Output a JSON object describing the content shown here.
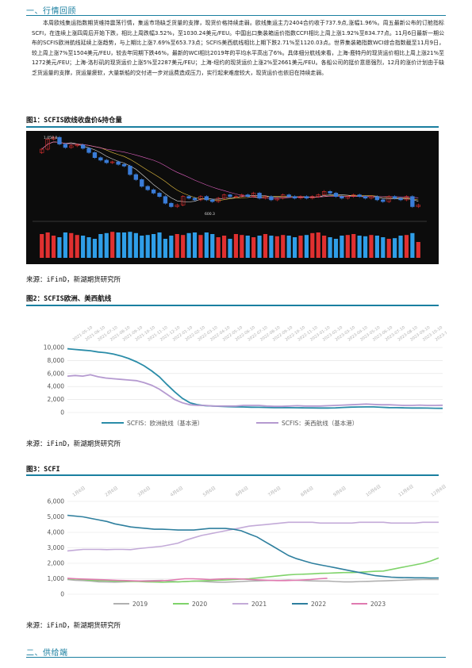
{
  "section1_title": "一、行情回顾",
  "section2_title": "二、供给端",
  "paragraph": "本周欧线集运指数期货维持震荡行情，集运市场缺乏货量的支撑，现货价格持续走弱。欧线集运主力2404合约收于737.9点,涨幅1.96%。周五最新公布的订舱指标SCFI，在连续上涨四周后开始下跌，相比上周跌幅3.52%，至1030.24美元/FEU。中国出口集装箱运价指数CCFI相比上周上涨1.92%至834.77点。11月6日最新一期公布的SCFIS欧洲航线延续上涨趋势，与上期比上涨7.69%至653.73点；SCFIS美西航线相比上期下跌2.71%至1120.03点。世界集装箱指数WCI综合指数截至11月9日，较上周上涨7%至1504美元/FEU，较去年同期下跌46%，最新的WCI相比2019年的平均水平高出了6%。具体细分航线来看，上海-鹿特丹的现货运价相比上周上涨21%至1272美元/FEU；上海-洛杉矶的现货运价上涨5%至2287美元/FEU；上海-纽约的现货运价上涨2%至2661美元/FEU。各船公司的挺价意愿强烈，12月的涨价计划由于缺乏货运量的支撑，货运量疲软，大量新船的交付进一步对运费造成压力，实行起来难度较大，现货运价也依旧在持续走弱。",
  "figures": {
    "fig1": {
      "title": "图1：SCFIS欧线收盘价&持仓量",
      "source": "来源：iFinD，新湖期货研究所"
    },
    "fig2": {
      "title": "图2：SCFIS欧洲、美西航线",
      "source": "来源：iFinD，新湖期货研究所"
    },
    "fig3": {
      "title": "图3：SCFI",
      "source": "来源：iFinD，新湖期货研究所"
    }
  },
  "colors": {
    "accent": "#1a7fa0",
    "candle_up": "#e03030",
    "candle_down": "#3a7cd8"
  },
  "chart_data": [
    {
      "type": "candlestick",
      "title": "",
      "price_labels": {
        "high": "1,059.8",
        "low": "600.3"
      },
      "close_approx": [
        980,
        1040,
        1050,
        1010,
        990,
        1000,
        1005,
        985,
        960,
        930,
        915,
        900,
        905,
        890,
        880,
        830,
        800,
        760,
        740,
        720,
        700,
        660,
        640,
        650,
        700,
        690,
        680,
        700,
        680,
        670,
        690,
        710,
        700,
        700,
        710,
        700,
        720,
        690,
        700,
        680,
        690,
        710,
        700,
        690,
        700,
        690,
        700,
        710,
        730,
        720,
        700,
        690,
        700,
        710,
        700,
        690,
        700,
        680,
        670,
        700,
        690,
        680,
        700,
        640,
        650
      ],
      "volume_approx": [
        0.75,
        0.8,
        0.7,
        0.65,
        0.8,
        0.78,
        0.72,
        0.7,
        0.65,
        0.6,
        0.75,
        0.78,
        0.82,
        0.8,
        0.8,
        0.82,
        0.78,
        0.7,
        0.72,
        0.75,
        0.8,
        0.6,
        0.7,
        0.75,
        0.72,
        0.78,
        0.8,
        0.72,
        0.8,
        0.75,
        0.65,
        0.7,
        0.6,
        0.75,
        0.72,
        0.7,
        0.65,
        0.7,
        0.75,
        0.7,
        0.68,
        0.72,
        0.7,
        0.65,
        0.7,
        0.72,
        0.78,
        0.8,
        0.7,
        0.65,
        0.6,
        0.7,
        0.72,
        0.75,
        0.7,
        0.68,
        0.72,
        0.7,
        0.65,
        0.6,
        0.62,
        0.7,
        0.72,
        0.78,
        0.5
      ]
    },
    {
      "type": "line",
      "title": "",
      "ylim": [
        0,
        10000
      ],
      "yticks": [
        "0",
        "2,000",
        "4,000",
        "6,000",
        "8,000",
        "10,000"
      ],
      "xticks": [
        "2021-05-10",
        "2021-06-10",
        "2021-07-10",
        "2021-08-10",
        "2021-09-10",
        "2021-10-10",
        "2021-11-10",
        "2021-12-10",
        "2022-01-10",
        "2022-02-10",
        "2022-03-10",
        "2022-04-10",
        "2022-05-10",
        "2022-06-10",
        "2022-07-10",
        "2022-08-10",
        "2022-09-10",
        "2022-10-10",
        "2022-11-10",
        "2023-01-10",
        "2023-02-10",
        "2023-03-10",
        "2023-04-10",
        "2023-05-10",
        "2023-06-10",
        "2023-07-10",
        "2023-08-10",
        "2023-09-10",
        "2023-10-10",
        "2023-11-10"
      ],
      "series": [
        {
          "name": "SCFIS：欧洲航线（基本港）",
          "color": "#2a8ca8",
          "values": [
            9800,
            9700,
            9600,
            9500,
            9300,
            9200,
            9000,
            8700,
            8300,
            7800,
            7200,
            6400,
            5500,
            4300,
            3200,
            2200,
            1500,
            1200,
            1050,
            1000,
            950,
            900,
            880,
            850,
            820,
            800,
            780,
            760,
            750,
            740,
            730,
            720,
            710,
            700,
            690,
            720,
            780,
            830,
            850,
            860,
            860,
            800,
            760,
            740,
            720,
            700,
            690,
            680,
            660,
            650
          ]
        },
        {
          "name": "SCFIS：美西航线（基本港）",
          "color": "#b59ad0",
          "values": [
            5600,
            5700,
            5600,
            5800,
            5500,
            5300,
            5200,
            5100,
            5000,
            4900,
            4600,
            4200,
            3600,
            2800,
            2000,
            1500,
            1200,
            1100,
            1100,
            1000,
            1000,
            1000,
            1000,
            1100,
            1100,
            1100,
            1000,
            950,
            950,
            1000,
            1050,
            1000,
            1000,
            1000,
            1050,
            1100,
            1150,
            1200,
            1250,
            1300,
            1250,
            1200,
            1200,
            1150,
            1100,
            1100,
            1150,
            1100,
            1100,
            1120
          ]
        }
      ]
    },
    {
      "type": "line",
      "title": "",
      "ylim": [
        0,
        6000
      ],
      "yticks": [
        "0",
        "1,000",
        "2,000",
        "3,000",
        "4,000",
        "5,000",
        "6,000"
      ],
      "xticks": [
        "1月6日",
        "2月6日",
        "3月6日",
        "4月6日",
        "5月6日",
        "6月6日",
        "7月6日",
        "8月6日",
        "9月6日",
        "10月6日",
        "11月6日",
        "12月6日"
      ],
      "legend_position": "bottom",
      "series": [
        {
          "name": "2019",
          "color": "#b0b0b0",
          "values": [
            950,
            900,
            880,
            850,
            800,
            790,
            780,
            800,
            820,
            850,
            870,
            880,
            900,
            850,
            800,
            820,
            850,
            830,
            800,
            780,
            780,
            800,
            820,
            850,
            860,
            880,
            900,
            900,
            920,
            900,
            880,
            860,
            850,
            850,
            820,
            800,
            800,
            820,
            830,
            850,
            860,
            880,
            900,
            920,
            940,
            950,
            960,
            950
          ]
        },
        {
          "name": "2020",
          "color": "#7fd36a",
          "values": [
            1000,
            980,
            950,
            900,
            880,
            870,
            850,
            840,
            830,
            820,
            800,
            790,
            780,
            790,
            800,
            820,
            840,
            860,
            880,
            900,
            920,
            950,
            980,
            1000,
            1050,
            1100,
            1150,
            1200,
            1250,
            1280,
            1300,
            1320,
            1350,
            1360,
            1380,
            1400,
            1400,
            1420,
            1450,
            1480,
            1500,
            1600,
            1700,
            1800,
            1900,
            2000,
            2150,
            2350
          ]
        },
        {
          "name": "2021",
          "color": "#c3aad8",
          "values": [
            2800,
            2850,
            2900,
            2900,
            2900,
            2880,
            2900,
            2900,
            2880,
            2950,
            3000,
            3050,
            3100,
            3200,
            3300,
            3500,
            3650,
            3800,
            3900,
            4000,
            4100,
            4200,
            4300,
            4400,
            4450,
            4500,
            4550,
            4600,
            4650,
            4650,
            4650,
            4650,
            4600,
            4600,
            4600,
            4600,
            4600,
            4650,
            4650,
            4650,
            4650,
            4600,
            4600,
            4600,
            4600,
            4650,
            4650,
            4650
          ]
        },
        {
          "name": "2022",
          "color": "#2e7f9e",
          "values": [
            5100,
            5050,
            5000,
            4900,
            4800,
            4700,
            4550,
            4450,
            4350,
            4300,
            4250,
            4200,
            4200,
            4180,
            4150,
            4150,
            4150,
            4200,
            4250,
            4250,
            4250,
            4200,
            4100,
            3900,
            3700,
            3400,
            3100,
            2800,
            2500,
            2300,
            2150,
            2000,
            1900,
            1800,
            1700,
            1600,
            1500,
            1400,
            1300,
            1200,
            1150,
            1100,
            1080,
            1070,
            1060,
            1060,
            1050,
            1050
          ]
        },
        {
          "name": "2023",
          "color": "#e07ab0",
          "values": [
            1030,
            1000,
            980,
            960,
            940,
            920,
            900,
            880,
            860,
            850,
            850,
            860,
            900,
            950,
            1000,
            1000,
            980,
            950,
            980,
            1000,
            1000,
            980,
            950,
            920,
            900,
            880,
            880,
            900,
            920,
            950,
            1000,
            1030
          ]
        }
      ]
    }
  ]
}
